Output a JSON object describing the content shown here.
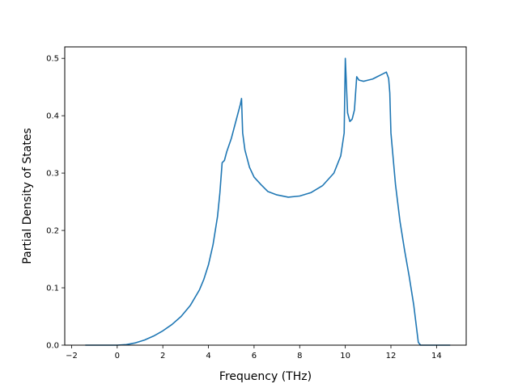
{
  "chart_data": {
    "type": "line",
    "xlabel": "Frequency (THz)",
    "ylabel": "Partial Density of States",
    "xlim": [
      -2.3,
      15.3
    ],
    "ylim": [
      0,
      0.52
    ],
    "x_ticks": [
      -2,
      0,
      2,
      4,
      6,
      8,
      10,
      12,
      14
    ],
    "x_tick_labels": [
      "−2",
      "0",
      "2",
      "4",
      "6",
      "8",
      "10",
      "12",
      "14"
    ],
    "y_ticks": [
      0.0,
      0.1,
      0.2,
      0.3,
      0.4,
      0.5
    ],
    "y_tick_labels": [
      "0.0",
      "0.1",
      "0.2",
      "0.3",
      "0.4",
      "0.5"
    ],
    "grid": false,
    "line_color": "#1f77b4",
    "series": [
      {
        "x": [
          -1.4,
          -0.5,
          0.0,
          0.4,
          0.8,
          1.2,
          1.6,
          2.0,
          2.4,
          2.8,
          3.2,
          3.6,
          3.8,
          4.0,
          4.2,
          4.4,
          4.5,
          4.6,
          4.7,
          4.8,
          5.0,
          5.2,
          5.4,
          5.45,
          5.5,
          5.6,
          5.8,
          6.0,
          6.3,
          6.6,
          7.0,
          7.5,
          8.0,
          8.5,
          9.0,
          9.5,
          9.8,
          9.95,
          10.0,
          10.1,
          10.2,
          10.3,
          10.4,
          10.5,
          10.6,
          10.8,
          11.0,
          11.2,
          11.4,
          11.6,
          11.8,
          11.9,
          11.95,
          12.0,
          12.2,
          12.4,
          12.6,
          12.8,
          13.0,
          13.2,
          13.3,
          13.5,
          14.0,
          14.6
        ],
        "y": [
          0.0,
          0.0,
          0.0,
          0.001,
          0.004,
          0.009,
          0.016,
          0.025,
          0.036,
          0.05,
          0.069,
          0.096,
          0.115,
          0.14,
          0.175,
          0.225,
          0.265,
          0.318,
          0.322,
          0.337,
          0.36,
          0.39,
          0.42,
          0.43,
          0.37,
          0.34,
          0.31,
          0.293,
          0.28,
          0.268,
          0.262,
          0.258,
          0.26,
          0.266,
          0.278,
          0.3,
          0.33,
          0.37,
          0.5,
          0.405,
          0.39,
          0.394,
          0.41,
          0.468,
          0.462,
          0.46,
          0.462,
          0.464,
          0.468,
          0.472,
          0.476,
          0.465,
          0.44,
          0.37,
          0.28,
          0.215,
          0.165,
          0.12,
          0.07,
          0.005,
          0.0,
          0.0,
          0.0,
          0.0
        ]
      }
    ]
  }
}
